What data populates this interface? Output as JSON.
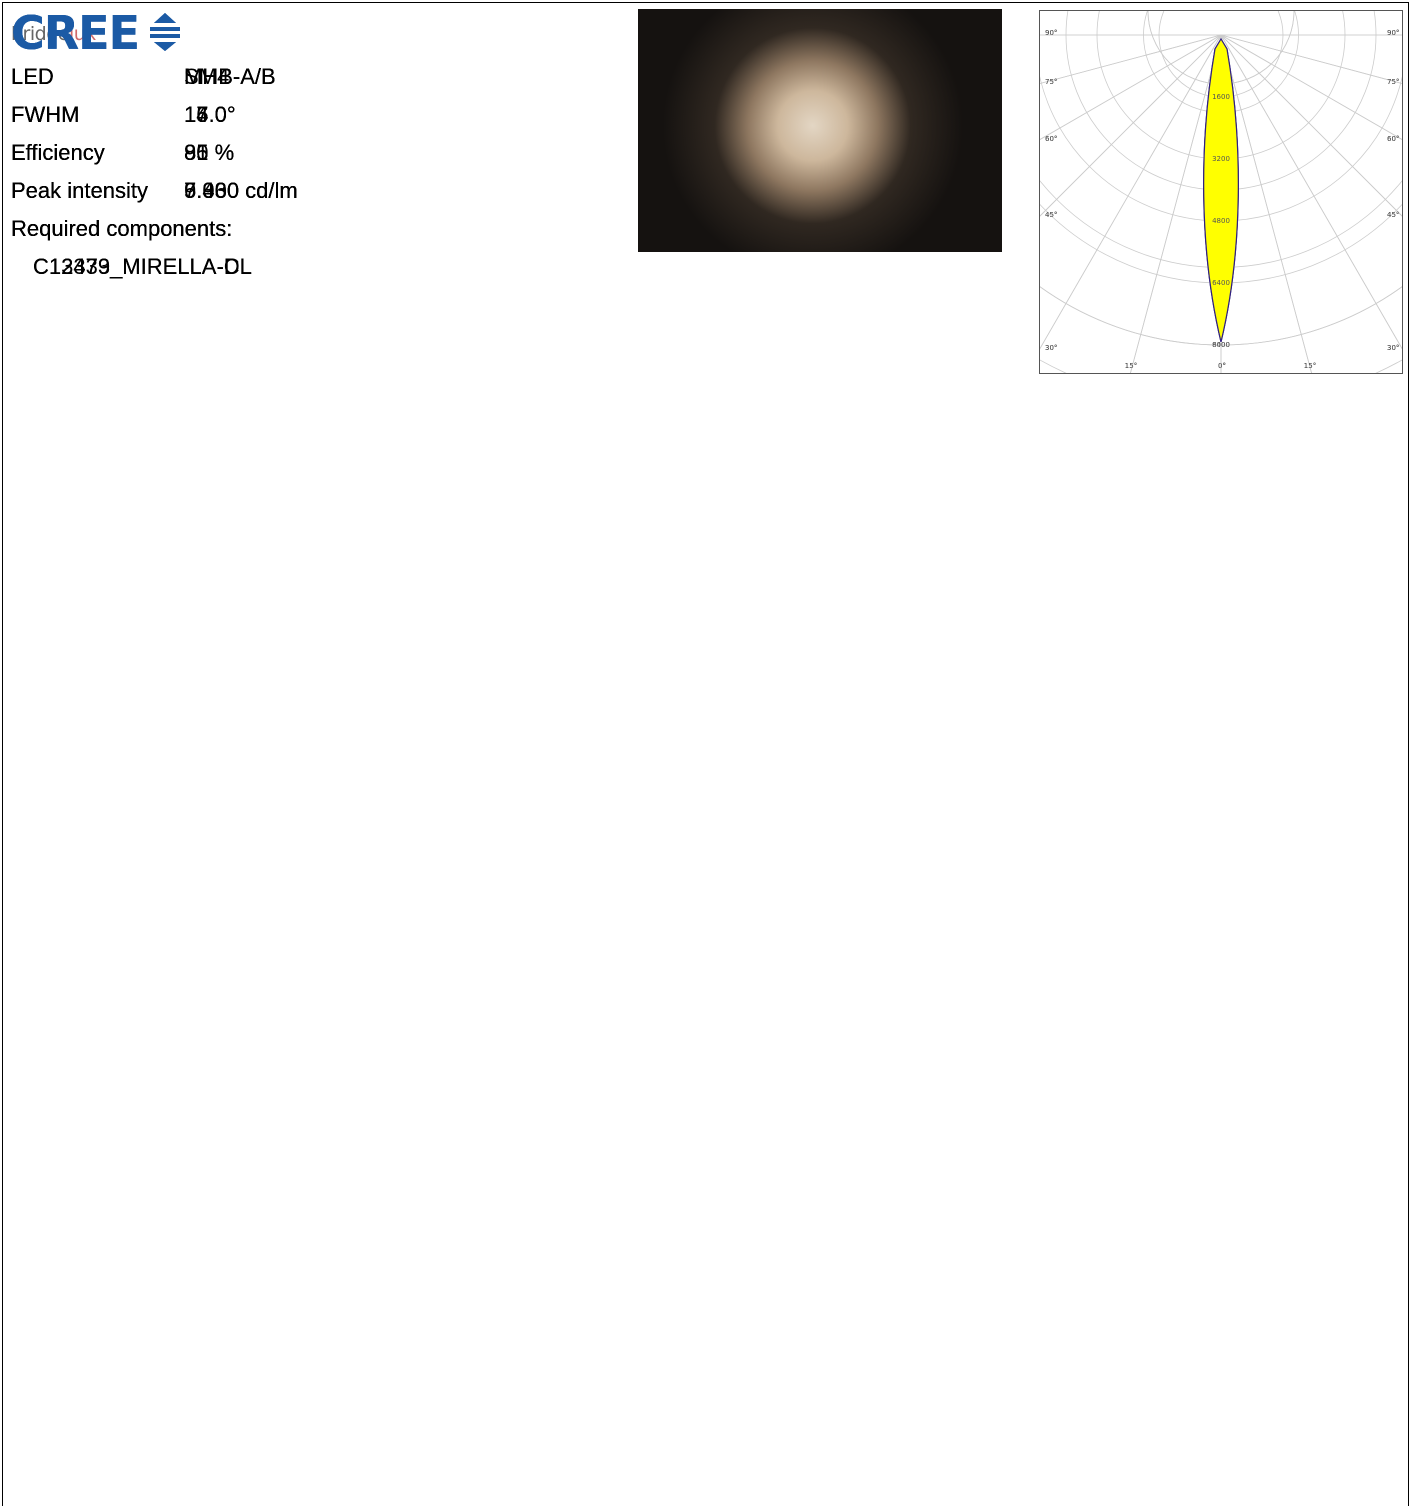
{
  "rows": [
    {
      "logo": [
        "bridge",
        "lux"
      ],
      "fields": [
        [
          "LED",
          "SM4"
        ],
        [
          "FWHM",
          "15.0°"
        ],
        [
          "Efficiency",
          "81 %"
        ],
        [
          "Peak intensity",
          "6.930 cd/lm"
        ]
      ],
      "required_label": "Required components:",
      "components": [
        "C12479_MIRELLA-DL"
      ]
    },
    {
      "logo": [
        "CREE"
      ],
      "fields": [
        [
          "LED",
          "MHB-A/B"
        ],
        [
          "FWHM",
          "14.0°"
        ],
        [
          "Efficiency",
          "90 %"
        ],
        [
          "Peak intensity",
          "9.360 cd/lm"
        ]
      ],
      "required_label": "Required components:",
      "components": []
    },
    {
      "logo": [
        "CREE"
      ],
      "fields": [
        [
          "LED",
          "MHB-A/B"
        ],
        [
          "FWHM",
          "17.0°"
        ],
        [
          "Efficiency",
          "85 %"
        ],
        [
          "Peak intensity",
          "5.430 cd/lm"
        ]
      ],
      "required_label": "Required components:",
      "components": [
        "C12479_MIRELLA-DL"
      ],
      "polar": {
        "side_labels": [
          "90°",
          "75°",
          "60°",
          "45°",
          "30°"
        ],
        "bottom_labels": [
          "15°",
          "0°",
          "15°"
        ],
        "radial_labels": [
          "1600",
          "3200",
          "4800",
          "6400"
        ]
      }
    },
    {
      "logo": [
        "CREE"
      ],
      "fields": [
        [
          "LED",
          "MHB-A/B"
        ],
        [
          "FWHM",
          "16.0°"
        ],
        [
          "Efficiency",
          "85 %"
        ],
        [
          "Peak intensity",
          "7.000 cd/lm"
        ]
      ],
      "required_label": "Required components:",
      "components": [
        "C13333_MIRELLA-CL"
      ],
      "polar": {
        "side_labels": [
          "90°",
          "75°",
          "60°",
          "45°",
          "30°"
        ],
        "bottom_labels": [
          "15°",
          "0°",
          "15°"
        ],
        "radial_labels": [
          "1600",
          "3200",
          "4800",
          "6400",
          "8000"
        ]
      }
    }
  ]
}
